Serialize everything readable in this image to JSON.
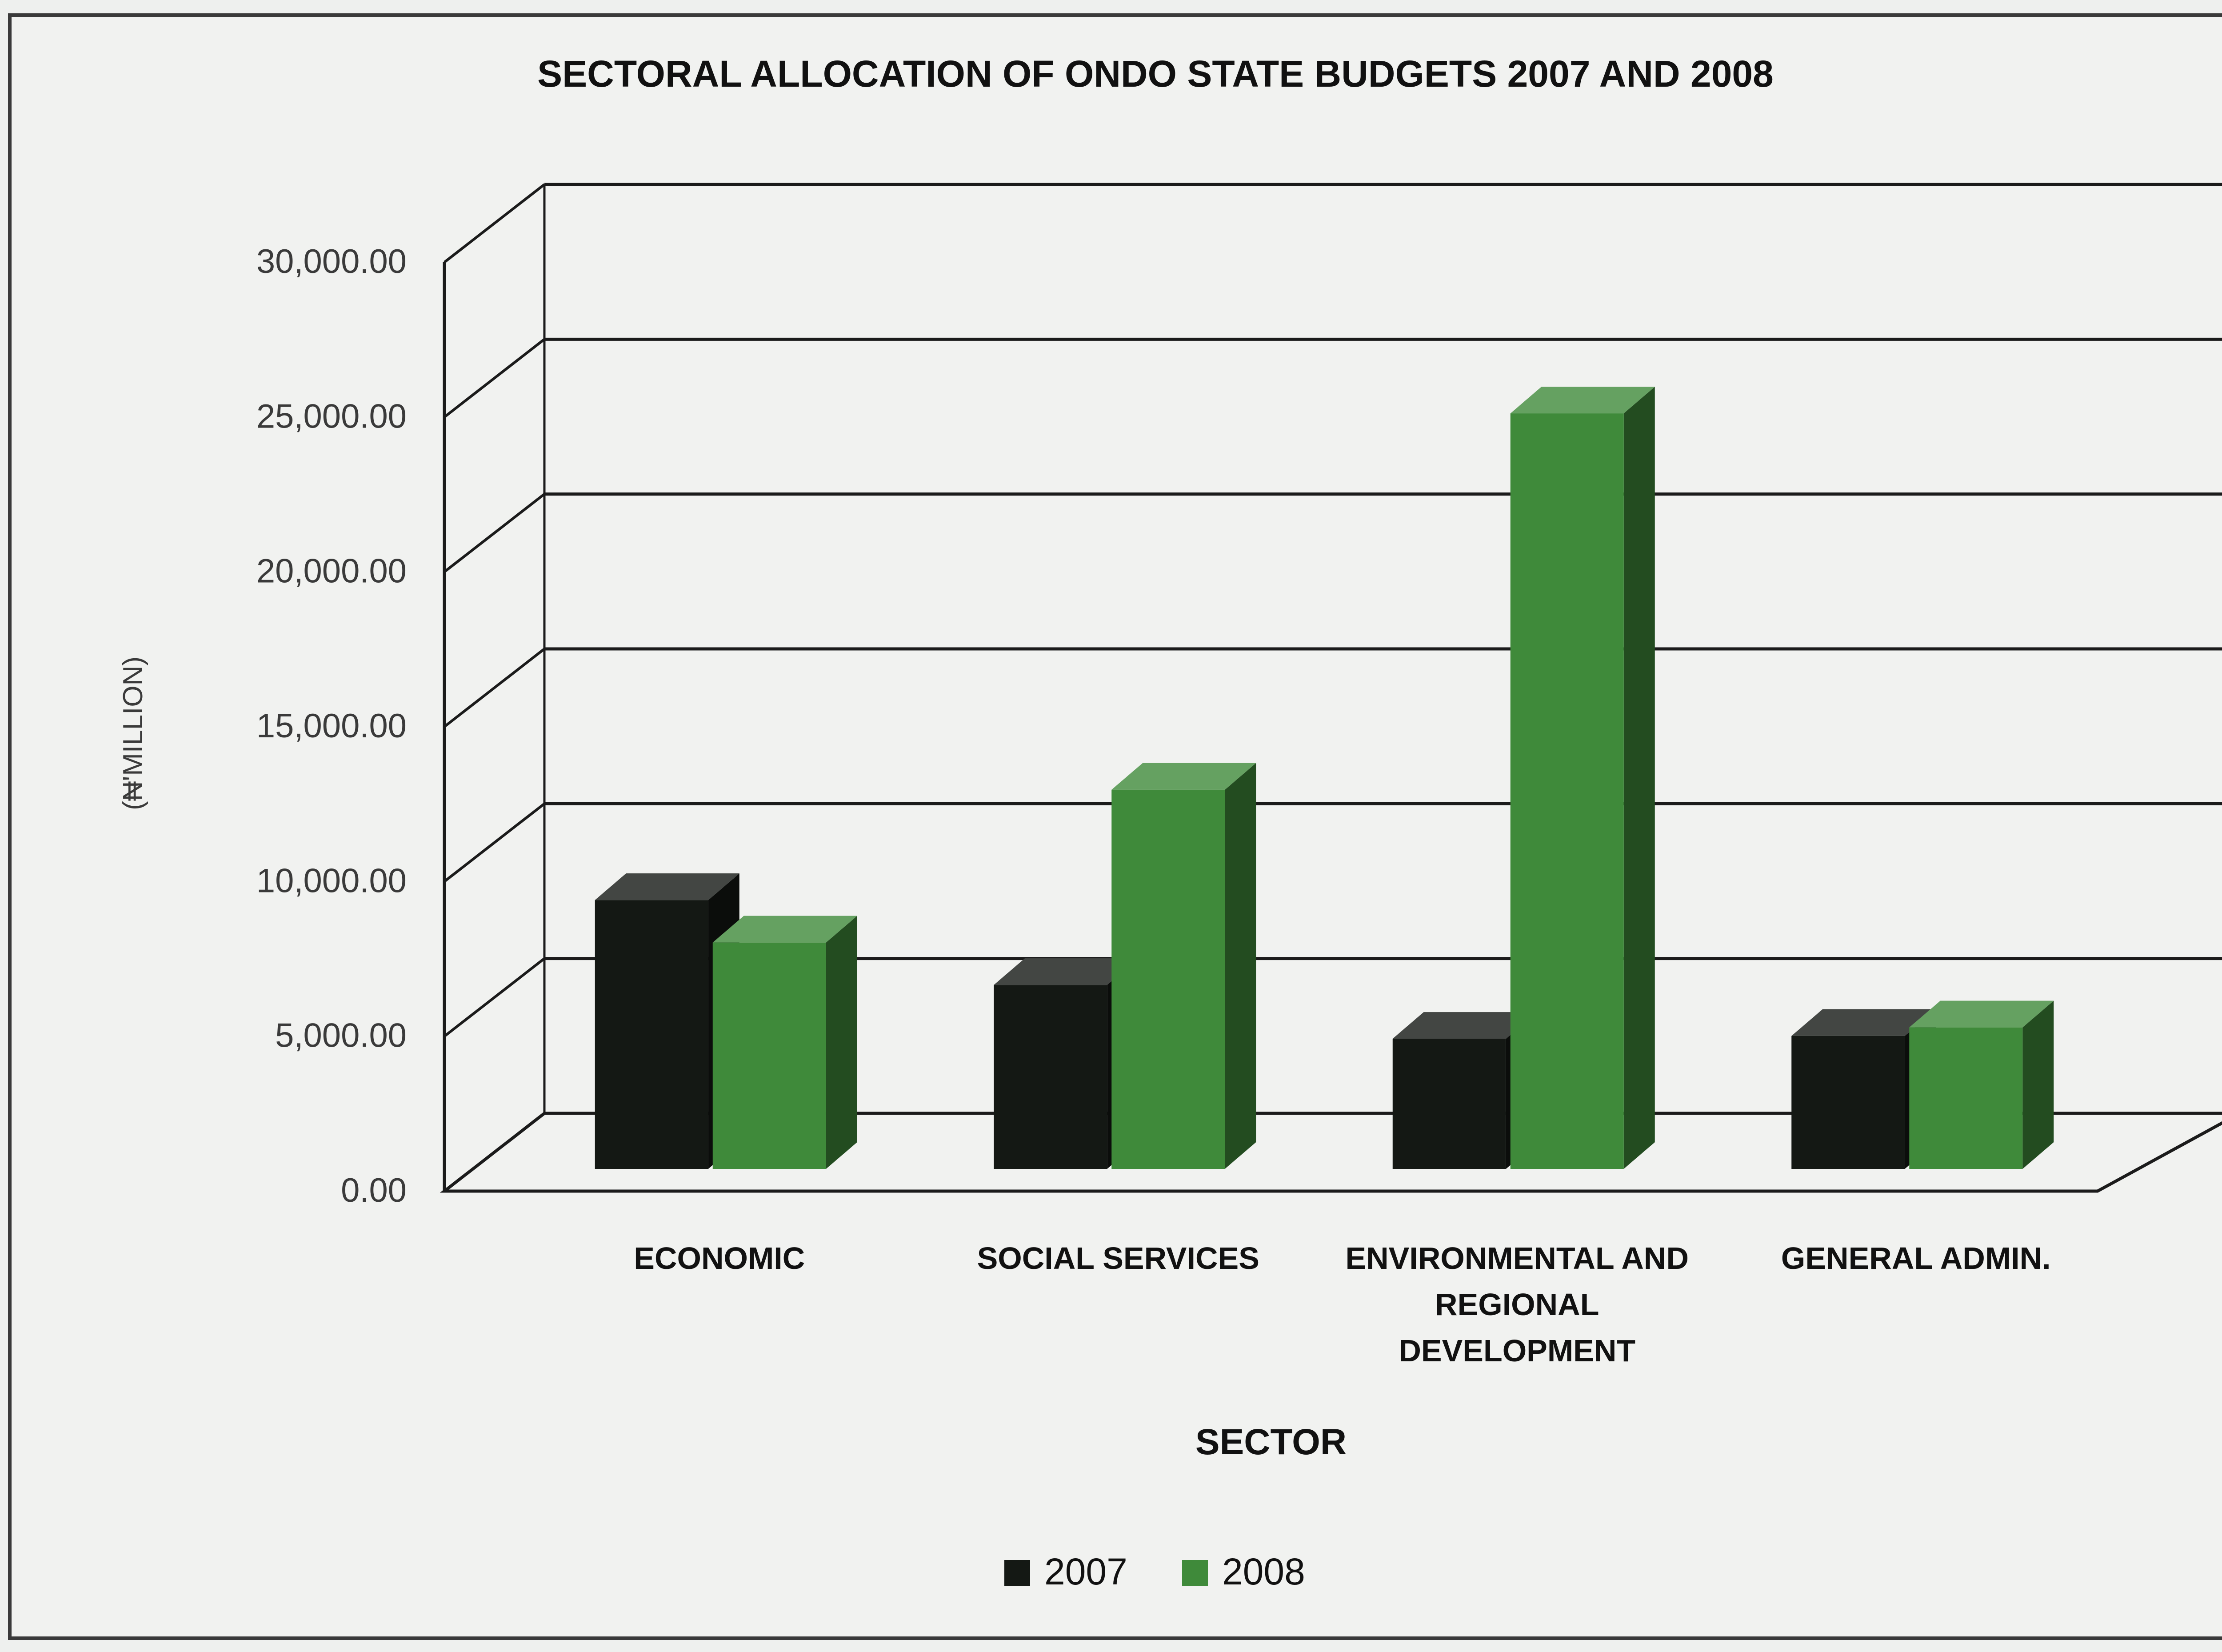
{
  "chart_data": {
    "type": "bar",
    "title": "SECTORAL ALLOCATION OF ONDO STATE BUDGETS  2007 AND 2008",
    "xlabel": "SECTOR",
    "ylabel": "(₦'MILLION)",
    "ylim": [
      0,
      30000
    ],
    "yticks": [
      "0.00",
      "5,000.00",
      "10,000.00",
      "15,000.00",
      "20,000.00",
      "25,000.00",
      "30,000.00"
    ],
    "categories": [
      [
        "ECONOMIC"
      ],
      [
        "SOCIAL SERVICES"
      ],
      [
        "ENVIRONMENTAL AND",
        "REGIONAL",
        "DEVELOPMENT"
      ],
      [
        "GENERAL ADMIN."
      ]
    ],
    "series": [
      {
        "name": "2007",
        "color": "#141814",
        "values": [
          9500,
          6500,
          4600,
          4700
        ]
      },
      {
        "name": "2008",
        "color": "#3f8a3a",
        "values": [
          8000,
          13400,
          26700,
          5000
        ]
      }
    ],
    "grid": true,
    "legend": "bottom-center"
  }
}
